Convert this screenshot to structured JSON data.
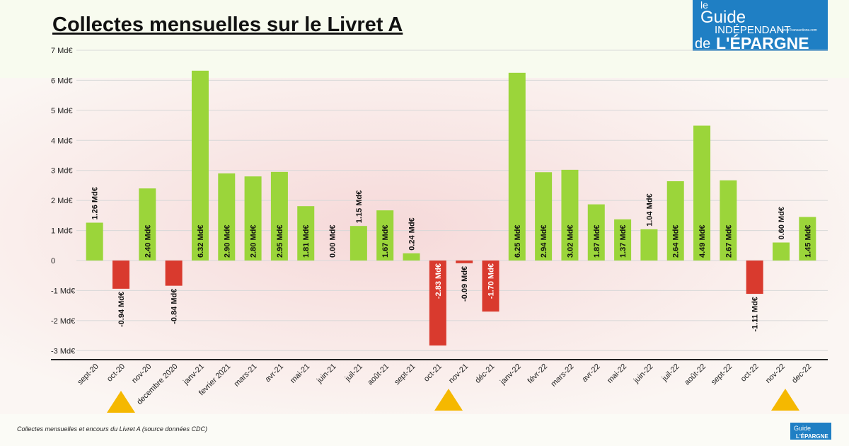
{
  "chart_data": {
    "type": "bar",
    "title": "Collectes mensuelles sur le Livret A",
    "categories": [
      "sept-20",
      "oct-20",
      "nov-20",
      "decembre 2020",
      "janv-21",
      "fevrier 2021",
      "mars-21",
      "avr-21",
      "mai-21",
      "juin-21",
      "juil-21",
      "août-21",
      "sept-21",
      "oct-21",
      "nov-21",
      "déc-21",
      "janv-22",
      "févr-22",
      "mars-22",
      "avr-22",
      "mai-22",
      "juin-22",
      "juil-22",
      "août-22",
      "sept-22",
      "oct-22",
      "nov-22",
      "dec-22"
    ],
    "values": [
      1.26,
      -0.94,
      2.4,
      -0.84,
      6.32,
      2.9,
      2.8,
      2.95,
      1.81,
      0.0,
      1.15,
      1.67,
      0.24,
      -2.83,
      -0.09,
      -1.7,
      6.25,
      2.94,
      3.02,
      1.87,
      1.37,
      1.04,
      2.64,
      4.49,
      2.67,
      -1.11,
      0.6,
      1.45
    ],
    "value_labels": [
      "1.26 Md€",
      "-0.94 Md€",
      "2.40 Md€",
      "-0.84 Md€",
      "6.32 Md€",
      "2.90 Md€",
      "2.80 Md€",
      "2.95 Md€",
      "1.81 Md€",
      "0.00 Md€",
      "1.15 Md€",
      "1.67 Md€",
      "0.24 Md€",
      "-2.83 Md€",
      "-0.09 Md€",
      "-1.70 Md€",
      "6.25 Md€",
      "2.94 Md€",
      "3.02 Md€",
      "1.87 Md€",
      "1.37 Md€",
      "1.04 Md€",
      "2.64 Md€",
      "4.49 Md€",
      "2.67 Md€",
      "-1.11 Md€",
      "0.60 Md€",
      "1.45 Md€"
    ],
    "positive_color": "#9bd53a",
    "negative_color": "#d93a2e",
    "ylim": [
      -3.3,
      7
    ],
    "yticks": [
      {
        "value": -3,
        "label": "-3 Md€"
      },
      {
        "value": -2,
        "label": "-2 Md€"
      },
      {
        "value": -1,
        "label": "-1 Md€"
      },
      0,
      {
        "value": 1,
        "label": "1 Md€"
      },
      {
        "value": 2,
        "label": "2 Md€"
      },
      {
        "value": 3,
        "label": "3 Md€"
      },
      {
        "value": 4,
        "label": "4 Md€"
      },
      {
        "value": 5,
        "label": "5 Md€"
      },
      {
        "value": 6,
        "label": "6 Md€"
      },
      {
        "value": 7,
        "label": "7 Md€"
      }
    ],
    "grid": true,
    "caption": "Collectes mensuelles et encours du Livret A (source données CDC)"
  },
  "logo": {
    "line1": "le",
    "line2": "Guide",
    "line3": "INDÉPENDANT",
    "line4": "de",
    "line5": "L'ÉPARGNE",
    "site": "FranceTransactions.com"
  }
}
